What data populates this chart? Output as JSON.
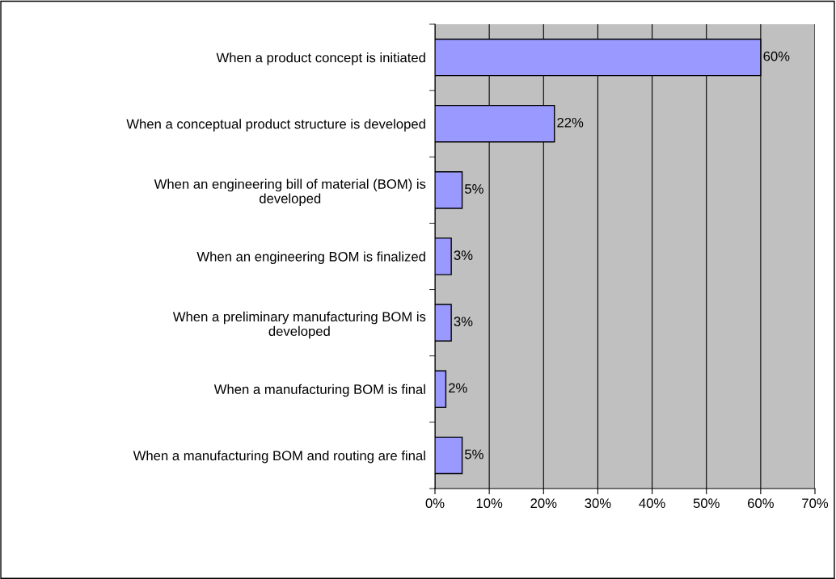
{
  "chart_data": {
    "type": "bar",
    "orientation": "horizontal",
    "categories": [
      "When a product concept is initiated",
      "When a conceptual product structure is developed",
      "When an engineering bill of material (BOM) is\ndeveloped",
      "When an engineering BOM is finalized",
      "When a preliminary manufacturing BOM is\ndeveloped",
      "When a manufacturing BOM is final",
      "When a manufacturing BOM and routing are final"
    ],
    "values": [
      60,
      22,
      5,
      3,
      3,
      2,
      5
    ],
    "value_labels": [
      "60%",
      "22%",
      "5%",
      "3%",
      "3%",
      "2%",
      "5%"
    ],
    "color": "#9999ff",
    "xlim": [
      0,
      70
    ],
    "xticks": [
      {
        "value": 0,
        "label": "0%"
      },
      {
        "value": 10,
        "label": "10%"
      },
      {
        "value": 20,
        "label": "20%"
      },
      {
        "value": 30,
        "label": "30%"
      },
      {
        "value": 40,
        "label": "40%"
      },
      {
        "value": 50,
        "label": "50%"
      },
      {
        "value": 60,
        "label": "60%"
      },
      {
        "value": 70,
        "label": "70%"
      }
    ],
    "grid": "x",
    "legend": false
  }
}
